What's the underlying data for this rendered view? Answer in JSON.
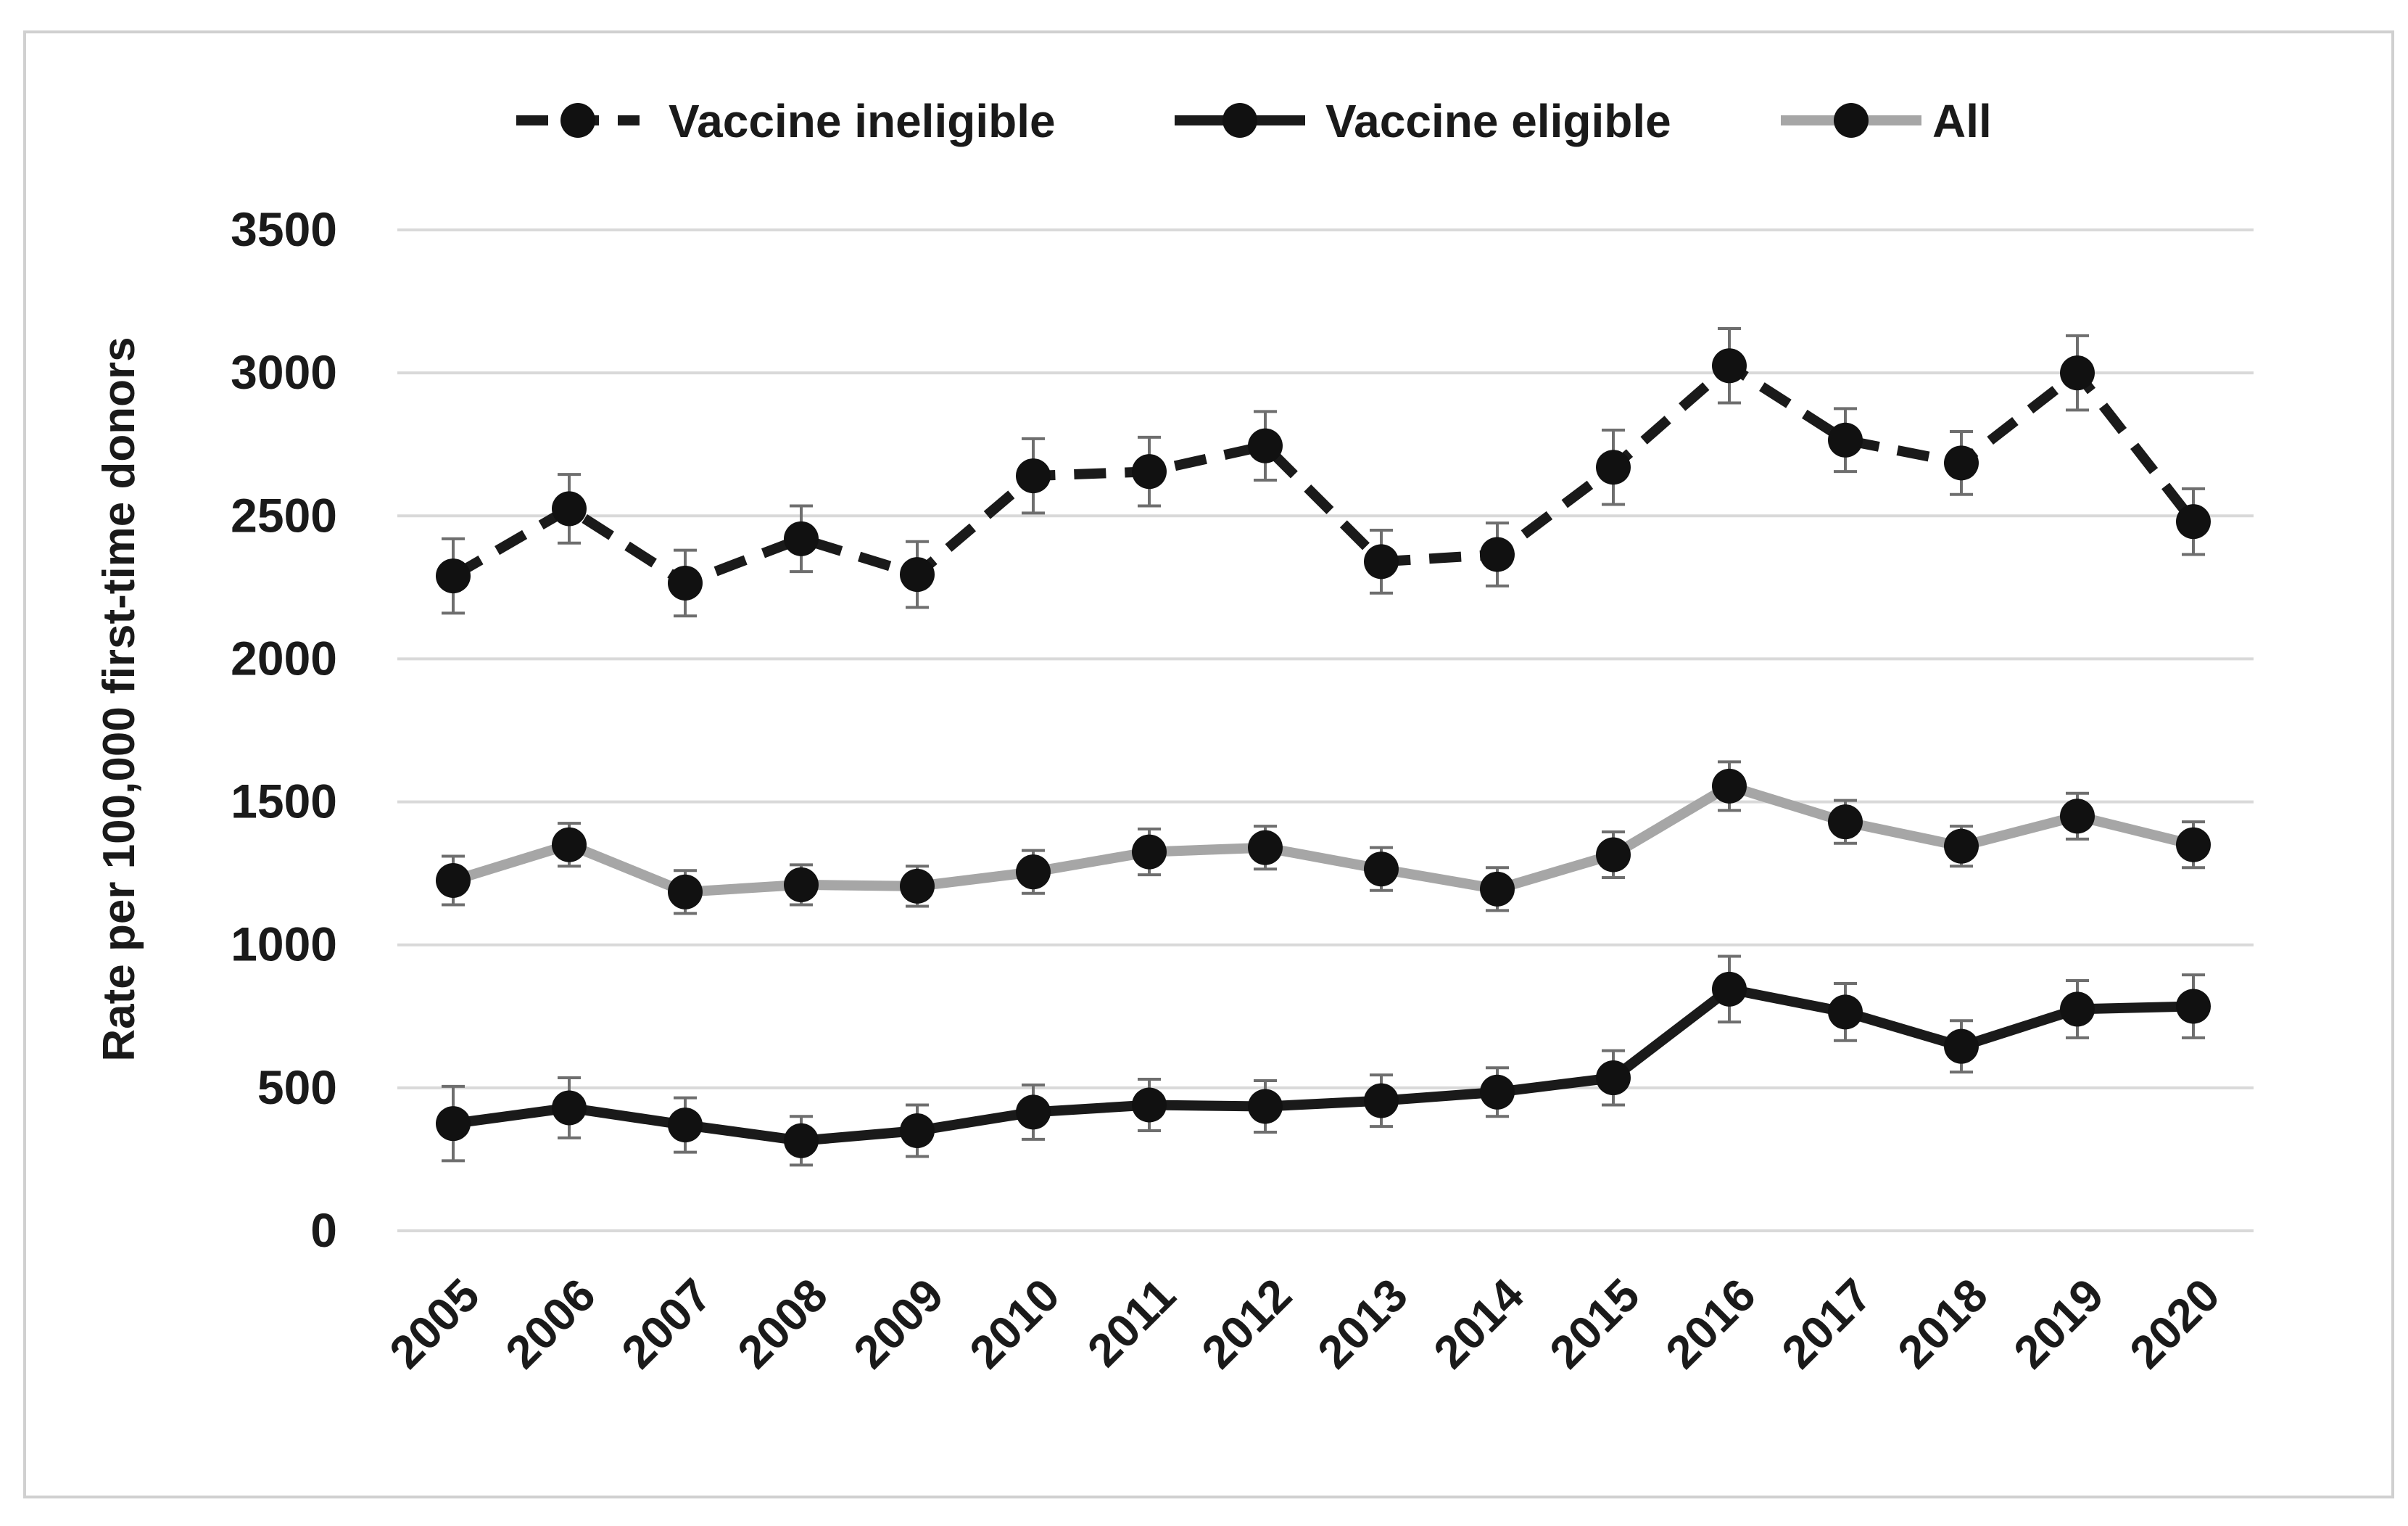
{
  "chart_data": {
    "type": "line",
    "title": "",
    "xlabel": "",
    "ylabel": "Rate per 100,000 first-time donors",
    "ylim": [
      0,
      3500
    ],
    "yticks": [
      "0",
      "500",
      "1000",
      "1500",
      "2000",
      "2500",
      "3000",
      "3500"
    ],
    "categories": [
      "2005",
      "2006",
      "2007",
      "2008",
      "2009",
      "2010",
      "2011",
      "2012",
      "2013",
      "2014",
      "2015",
      "2016",
      "2017",
      "2018",
      "2019",
      "2020"
    ],
    "grid": true,
    "legend_position": "top-center",
    "series": [
      {
        "name": "Vaccine ineligible",
        "style": "dashed",
        "color": "#1a1a1a",
        "values": [
          2290,
          2525,
          2265,
          2420,
          2295,
          2640,
          2655,
          2745,
          2340,
          2365,
          2670,
          3025,
          2765,
          2685,
          3000,
          2480
        ],
        "error": [
          130,
          120,
          115,
          115,
          115,
          130,
          120,
          120,
          110,
          110,
          130,
          130,
          110,
          110,
          130,
          115
        ]
      },
      {
        "name": "Vaccine eligible",
        "style": "solid",
        "color": "#1a1a1a",
        "values": [
          375,
          430,
          370,
          315,
          350,
          415,
          440,
          435,
          455,
          485,
          535,
          845,
          765,
          645,
          775,
          785
        ],
        "error": [
          130,
          105,
          95,
          85,
          90,
          95,
          90,
          90,
          90,
          85,
          95,
          115,
          100,
          90,
          100,
          110
        ]
      },
      {
        "name": "All",
        "style": "solid",
        "color": "#a6a6a6",
        "values": [
          1225,
          1350,
          1185,
          1210,
          1205,
          1255,
          1325,
          1340,
          1265,
          1195,
          1315,
          1555,
          1430,
          1345,
          1450,
          1350
        ],
        "error": [
          85,
          75,
          75,
          70,
          70,
          75,
          80,
          75,
          75,
          75,
          80,
          85,
          75,
          70,
          80,
          80
        ]
      }
    ]
  }
}
